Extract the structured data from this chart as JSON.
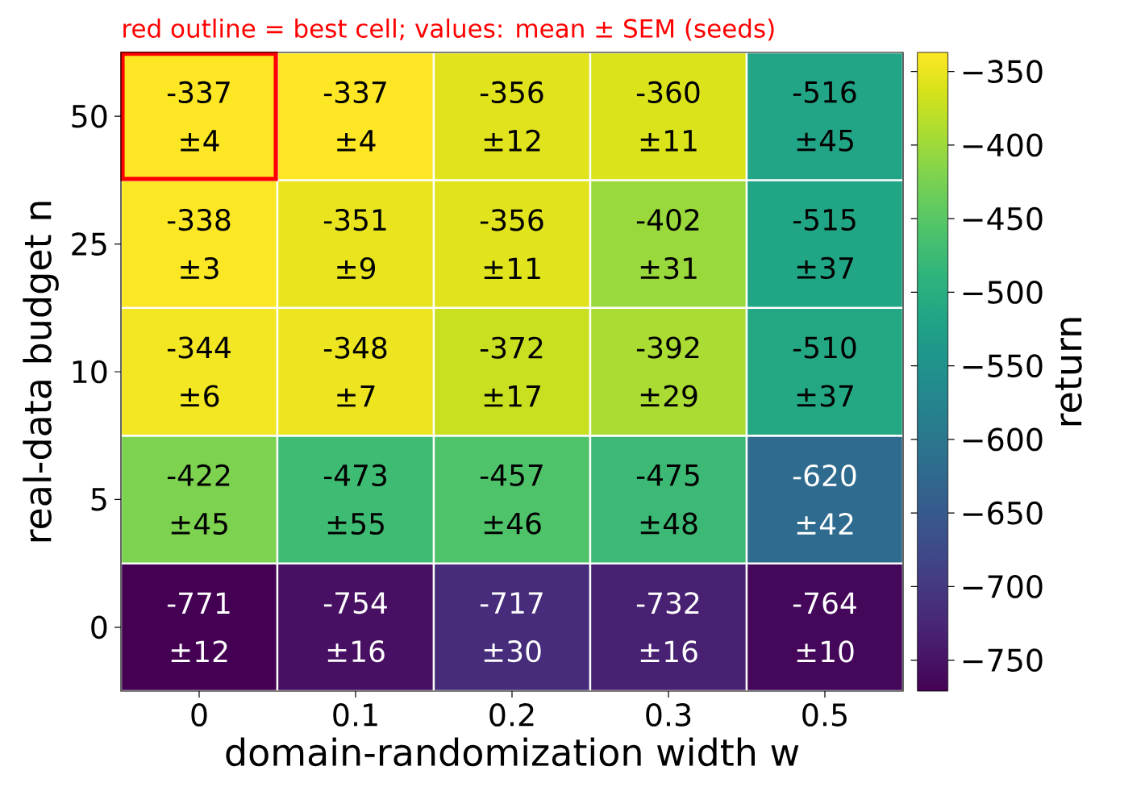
{
  "chart_data": {
    "type": "heatmap",
    "xlabel": "domain-randomization width  w",
    "ylabel": "real-data budget  n",
    "clabel": "return",
    "categories": [
      "0",
      "0.1",
      "0.2",
      "0.3",
      "0.5"
    ],
    "y_categories": [
      "50",
      "25",
      "10",
      "5",
      "0"
    ],
    "cells": [
      [
        -337,
        -337,
        -356,
        -360,
        -516
      ],
      [
        -338,
        -351,
        -356,
        -402,
        -515
      ],
      [
        -344,
        -348,
        -372,
        -392,
        -510
      ],
      [
        -422,
        -473,
        -457,
        -475,
        -620
      ],
      [
        -771,
        -754,
        -717,
        -732,
        -764
      ]
    ],
    "cell_labels": [
      [
        "-337 ±4",
        "-337 ±4",
        "-356 ±12",
        "-360 ±11",
        "-516 ±45"
      ],
      [
        "-338 ±3",
        "-351 ±9",
        "-356 ±11",
        "-402 ±31",
        "-515 ±37"
      ],
      [
        "-344 ±6",
        "-348 ±7",
        "-372 ±17",
        "-392 ±29",
        "-510 ±37"
      ],
      [
        "-422 ±45",
        "-473 ±55",
        "-457 ±46",
        "-475 ±48",
        "-620 ±42"
      ],
      [
        "-771 ±12",
        "-754 ±16",
        "-717 ±30",
        "-732 ±16",
        "-764 ±10"
      ]
    ],
    "clim": [
      -771,
      -337
    ],
    "cticks": [
      {
        "value": -350,
        "label": "−350"
      },
      {
        "value": -400,
        "label": "−400"
      },
      {
        "value": -450,
        "label": "−450"
      },
      {
        "value": -500,
        "label": "−500"
      },
      {
        "value": -550,
        "label": "−550"
      },
      {
        "value": -600,
        "label": "−600"
      },
      {
        "value": -650,
        "label": "−650"
      },
      {
        "value": -700,
        "label": "−700"
      },
      {
        "value": -750,
        "label": "−750"
      }
    ],
    "annotations": [
      "red outline = best cell;  values: mean ± SEM (seeds)"
    ]
  }
}
